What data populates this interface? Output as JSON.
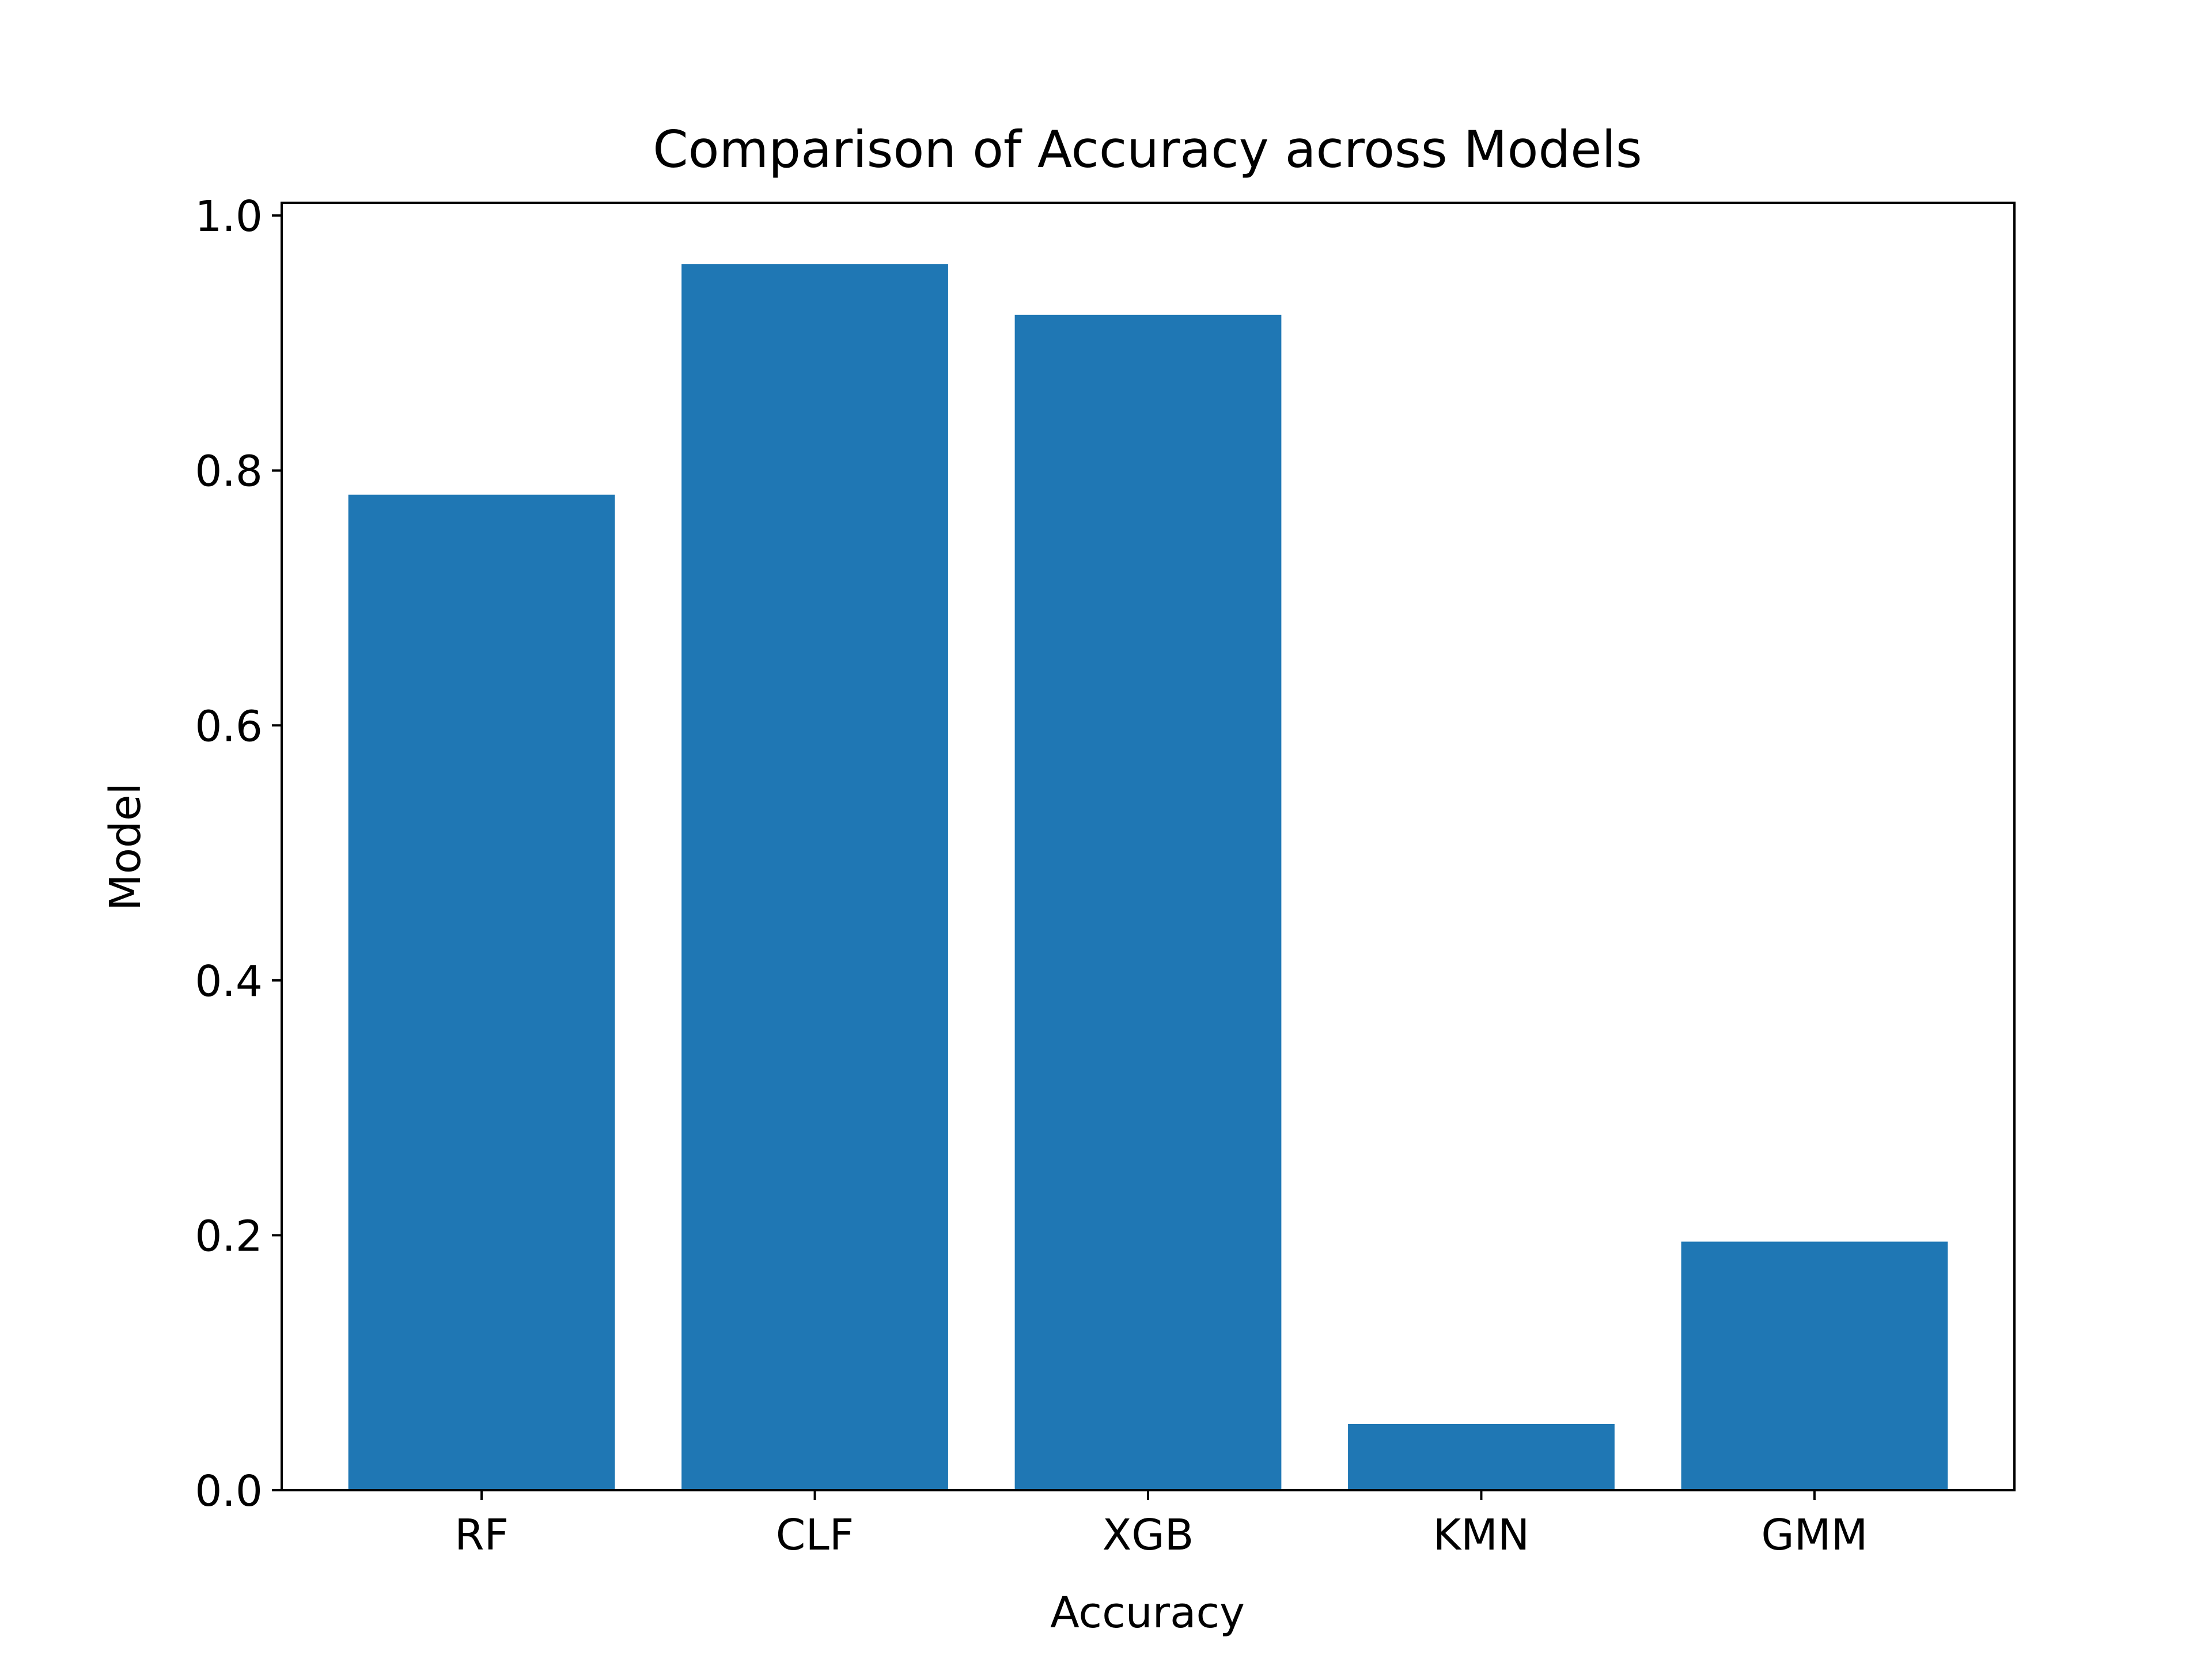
{
  "chart_data": {
    "type": "bar",
    "title": "Comparison of Accuracy across Models",
    "xlabel": "Accuracy",
    "ylabel": "Model",
    "categories": [
      "RF",
      "CLF",
      "XGB",
      "KMN",
      "GMM"
    ],
    "values": [
      0.781,
      0.962,
      0.922,
      0.052,
      0.195
    ],
    "ylim": [
      0,
      1.01
    ],
    "yticks": [
      0.0,
      0.2,
      0.4,
      0.6,
      0.8,
      1.0
    ],
    "ytick_labels": [
      "0.0",
      "0.2",
      "0.4",
      "0.6",
      "0.8",
      "1.0"
    ],
    "bar_color": "#1f77b4",
    "grid": false,
    "legend": "none"
  }
}
